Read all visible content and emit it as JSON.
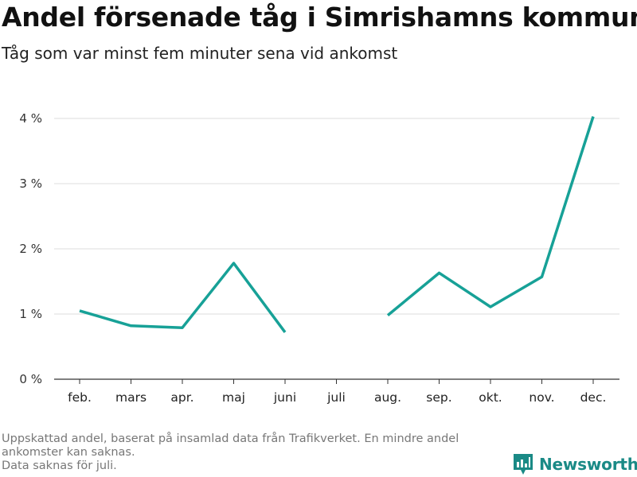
{
  "title": "Andel försenade tåg i Simrishamns kommun",
  "subtitle": "Tåg som var minst fem minuter sena vid ankomst",
  "footnote": {
    "line1": "Uppskattad andel, baserat på insamlad data från Trafikverket. En mindre andel ankomster kan saknas.",
    "line2": "Data saknas för juli."
  },
  "brand": {
    "name": "Newsworthy",
    "icon": "newsworthy-logo-icon",
    "color": "#1a8a86"
  },
  "colors": {
    "line": "#17a197",
    "grid": "#dddddd",
    "axis": "#333333"
  },
  "chart_data": {
    "type": "line",
    "categories": [
      "feb.",
      "mars",
      "apr.",
      "maj",
      "juni",
      "juli",
      "aug.",
      "sep.",
      "okt.",
      "nov.",
      "dec."
    ],
    "series": [
      {
        "values": [
          1.05,
          0.82,
          0.79,
          1.78,
          0.72,
          null,
          0.98,
          1.63,
          1.11,
          1.57,
          4.03
        ]
      }
    ],
    "y_ticks": [
      0,
      1,
      2,
      3,
      4
    ],
    "y_tick_labels": [
      "0 %",
      "1 %",
      "2 %",
      "3 %",
      "4 %"
    ],
    "ylim": [
      0,
      4.1
    ],
    "grid": true,
    "legend": "none"
  }
}
